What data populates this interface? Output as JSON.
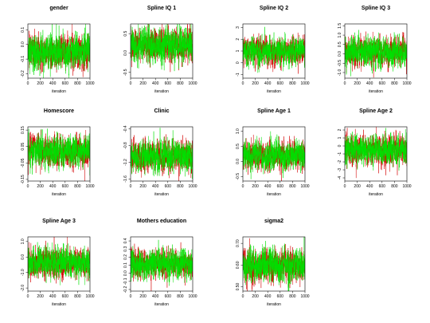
{
  "figure": {
    "layout": "3 rows x 4 columns of MCMC trace plots",
    "series_colors": {
      "chain1": "#d40000",
      "chain2": "#00e000"
    },
    "axis_color": "#000000"
  },
  "chart_data": [
    {
      "type": "line",
      "title": "gender",
      "xlabel": "iteration",
      "xlim": [
        0,
        1000
      ],
      "ylim": [
        -0.23,
        0.14
      ],
      "x_ticks": [
        0,
        200,
        400,
        600,
        800,
        1000
      ],
      "x_tick_labels": [
        "0",
        "200",
        "400",
        "600",
        "800",
        "1000"
      ],
      "y_ticks": [
        0.1,
        0.0,
        -0.1,
        -0.2
      ],
      "y_tick_labels": [
        "0.1",
        "0.0",
        "-0.1",
        "-0.2"
      ],
      "series": [
        {
          "color": "#d40000",
          "center": -0.05,
          "sd": 0.055
        },
        {
          "color": "#00e000",
          "center": -0.05,
          "sd": 0.055
        }
      ],
      "n_iter": 1000
    },
    {
      "type": "line",
      "title": "Spline IQ 1",
      "xlabel": "iteration",
      "xlim": [
        0,
        1000
      ],
      "ylim": [
        -0.65,
        0.75
      ],
      "x_ticks": [
        0,
        200,
        400,
        600,
        800,
        1000
      ],
      "x_tick_labels": [
        "0",
        "200",
        "400",
        "600",
        "800",
        "1000"
      ],
      "y_ticks": [
        0.5,
        0.0,
        -0.5
      ],
      "y_tick_labels": [
        "0.5",
        "0.0",
        "-0.5"
      ],
      "series": [
        {
          "color": "#d40000",
          "center": 0.2,
          "sd": 0.2
        },
        {
          "color": "#00e000",
          "center": 0.2,
          "sd": 0.2
        }
      ],
      "n_iter": 1000
    },
    {
      "type": "line",
      "title": "Spline IQ 2",
      "xlabel": "iteration",
      "xlim": [
        0,
        1000
      ],
      "ylim": [
        -1.3,
        3.3
      ],
      "x_ticks": [
        0,
        200,
        400,
        600,
        800,
        1000
      ],
      "x_tick_labels": [
        "0",
        "200",
        "400",
        "600",
        "800",
        "1000"
      ],
      "y_ticks": [
        3,
        2,
        1,
        0,
        -1
      ],
      "y_tick_labels": [
        "3",
        "2",
        "1",
        "0",
        "-1"
      ],
      "series": [
        {
          "color": "#d40000",
          "center": 1.0,
          "sd": 0.55
        },
        {
          "color": "#00e000",
          "center": 1.0,
          "sd": 0.55
        }
      ],
      "n_iter": 1000
    },
    {
      "type": "line",
      "title": "Spline IQ 3",
      "xlabel": "iteration",
      "xlim": [
        0,
        1000
      ],
      "ylim": [
        -1.3,
        1.6
      ],
      "x_ticks": [
        0,
        200,
        400,
        600,
        800,
        1000
      ],
      "x_tick_labels": [
        "0",
        "200",
        "400",
        "600",
        "800",
        "1000"
      ],
      "y_ticks": [
        1.5,
        1.0,
        0.5,
        0.0,
        -0.5,
        -1.0
      ],
      "y_tick_labels": [
        "1.5",
        "1.0",
        "0.5",
        "0.0",
        "-0.5",
        "-1.0"
      ],
      "series": [
        {
          "color": "#d40000",
          "center": 0.1,
          "sd": 0.38
        },
        {
          "color": "#00e000",
          "center": 0.1,
          "sd": 0.38
        }
      ],
      "n_iter": 1000
    },
    {
      "type": "line",
      "title": "Homescore",
      "xlabel": "iteration",
      "xlim": [
        0,
        1000
      ],
      "ylim": [
        -0.16,
        0.17
      ],
      "x_ticks": [
        0,
        200,
        400,
        600,
        800,
        1000
      ],
      "x_tick_labels": [
        "0",
        "200",
        "400",
        "600",
        "800",
        "1000"
      ],
      "y_ticks": [
        0.15,
        0.05,
        -0.05,
        -0.15
      ],
      "y_tick_labels": [
        "0.15",
        "0.05",
        "-0.05",
        "-0.15"
      ],
      "series": [
        {
          "color": "#d40000",
          "center": 0.02,
          "sd": 0.045
        },
        {
          "color": "#00e000",
          "center": 0.02,
          "sd": 0.045
        }
      ],
      "n_iter": 1000
    },
    {
      "type": "line",
      "title": "Clinic",
      "xlabel": "iteration",
      "xlim": [
        0,
        1000
      ],
      "ylim": [
        -1.65,
        -0.35
      ],
      "x_ticks": [
        0,
        200,
        400,
        600,
        800,
        1000
      ],
      "x_tick_labels": [
        "0",
        "200",
        "400",
        "600",
        "800",
        "1000"
      ],
      "y_ticks": [
        -0.4,
        -0.8,
        -1.2,
        -1.6
      ],
      "y_tick_labels": [
        "-0.4",
        "-0.8",
        "-1.2",
        "-1.6"
      ],
      "series": [
        {
          "color": "#d40000",
          "center": -1.05,
          "sd": 0.18
        },
        {
          "color": "#00e000",
          "center": -1.05,
          "sd": 0.18
        }
      ],
      "n_iter": 1000
    },
    {
      "type": "line",
      "title": "Spline Age 1",
      "xlabel": "iteration",
      "xlim": [
        0,
        1000
      ],
      "ylim": [
        -0.65,
        1.15
      ],
      "x_ticks": [
        0,
        200,
        400,
        600,
        800,
        1000
      ],
      "x_tick_labels": [
        "0",
        "200",
        "400",
        "600",
        "800",
        "1000"
      ],
      "y_ticks": [
        1.0,
        0.5,
        0.0,
        -0.5
      ],
      "y_tick_labels": [
        "1.0",
        "0.5",
        "0.0",
        "-0.5"
      ],
      "series": [
        {
          "color": "#d40000",
          "center": 0.2,
          "sd": 0.22
        },
        {
          "color": "#00e000",
          "center": 0.2,
          "sd": 0.22
        }
      ],
      "n_iter": 1000
    },
    {
      "type": "line",
      "title": "Spline Age 2",
      "xlabel": "iteration",
      "xlim": [
        0,
        1000
      ],
      "ylim": [
        -4.4,
        2.4
      ],
      "x_ticks": [
        0,
        200,
        400,
        600,
        800,
        1000
      ],
      "x_tick_labels": [
        "0",
        "200",
        "400",
        "600",
        "800",
        "1000"
      ],
      "y_ticks": [
        2,
        1,
        0,
        -1,
        -2,
        -3,
        -4
      ],
      "y_tick_labels": [
        "2",
        "1",
        "0",
        "-1",
        "-2",
        "-3",
        "-4"
      ],
      "series": [
        {
          "color": "#d40000",
          "center": -0.5,
          "sd": 0.9
        },
        {
          "color": "#00e000",
          "center": -0.5,
          "sd": 0.9
        }
      ],
      "n_iter": 1000
    },
    {
      "type": "line",
      "title": "Spline Age 3",
      "xlabel": "iteration",
      "xlim": [
        0,
        1000
      ],
      "ylim": [
        -2.2,
        1.3
      ],
      "x_ticks": [
        0,
        200,
        400,
        600,
        800,
        1000
      ],
      "x_tick_labels": [
        "0",
        "200",
        "400",
        "600",
        "800",
        "1000"
      ],
      "y_ticks": [
        1.0,
        0.0,
        -1.0,
        -2.0
      ],
      "y_tick_labels": [
        "1.0",
        "0.0",
        "-1.0",
        "-2.0"
      ],
      "series": [
        {
          "color": "#d40000",
          "center": -0.4,
          "sd": 0.45
        },
        {
          "color": "#00e000",
          "center": -0.4,
          "sd": 0.45
        }
      ],
      "n_iter": 1000
    },
    {
      "type": "line",
      "title": "Mothers education",
      "xlabel": "iteration",
      "xlim": [
        0,
        1000
      ],
      "ylim": [
        -0.22,
        0.45
      ],
      "x_ticks": [
        0,
        200,
        400,
        600,
        800,
        1000
      ],
      "x_tick_labels": [
        "0",
        "200",
        "400",
        "600",
        "800",
        "1000"
      ],
      "y_ticks": [
        0.4,
        0.3,
        0.2,
        0.1,
        0.0,
        -0.1,
        -0.2
      ],
      "y_tick_labels": [
        "0.4",
        "0.3",
        "0.2",
        "0.1",
        "0.0",
        "-0.1",
        "-0.2"
      ],
      "series": [
        {
          "color": "#d40000",
          "center": 0.12,
          "sd": 0.085
        },
        {
          "color": "#00e000",
          "center": 0.12,
          "sd": 0.085
        }
      ],
      "n_iter": 1000
    },
    {
      "type": "line",
      "title": "sigma2",
      "xlabel": "iteration",
      "xlim": [
        0,
        1000
      ],
      "ylim": [
        0.48,
        0.73
      ],
      "x_ticks": [
        0,
        200,
        400,
        600,
        800,
        1000
      ],
      "x_tick_labels": [
        "0",
        "200",
        "400",
        "600",
        "800",
        "1000"
      ],
      "y_ticks": [
        0.7,
        0.6,
        0.5
      ],
      "y_tick_labels": [
        "0.70",
        "0.60",
        "0.50"
      ],
      "series": [
        {
          "color": "#d40000",
          "center": 0.6,
          "sd": 0.035
        },
        {
          "color": "#00e000",
          "center": 0.6,
          "sd": 0.035
        }
      ],
      "n_iter": 1000
    }
  ]
}
